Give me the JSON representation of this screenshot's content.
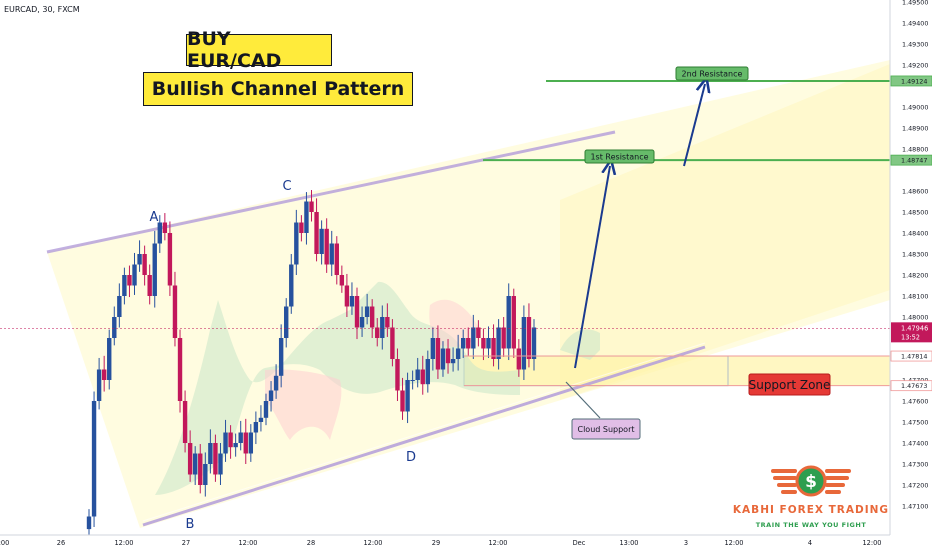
{
  "header": {
    "symbol": "EURCAD, 30, FXCM"
  },
  "titles": {
    "line1": "BUY EUR/CAD",
    "line2": "Bullish Channel Pattern"
  },
  "chart_data": {
    "type": "candlestick",
    "symbol": "EURCAD",
    "timeframe": "30",
    "source": "FXCM",
    "ylim": [
      1.47,
      1.495
    ],
    "y_ticks": [
      1.471,
      1.472,
      1.473,
      1.474,
      1.475,
      1.476,
      1.477,
      1.478,
      1.479,
      1.48,
      1.481,
      1.482,
      1.483,
      1.484,
      1.485,
      1.486,
      1.487,
      1.488,
      1.489,
      1.49,
      1.491,
      1.492,
      1.493,
      1.494,
      1.495
    ],
    "y_tick_labels": [
      "1.47100",
      "1.47200",
      "1.47300",
      "1.47400",
      "1.47500",
      "1.47600",
      "1.47700",
      "1.47800",
      "1.47900",
      "1.48000",
      "1.48100",
      "1.48200",
      "1.48300",
      "1.48400",
      "1.48500",
      "1.48600",
      "1.48700",
      "1.48800",
      "1.48900",
      "1.49000",
      "1.49100",
      "1.49200",
      "1.49300",
      "1.49400",
      "1.49500"
    ],
    "y_tick_hidden": [
      "1.47800",
      "1.48700",
      "1.49100"
    ],
    "x_ticks": [
      {
        "label": ":00",
        "x": 4
      },
      {
        "label": "26",
        "x": 61
      },
      {
        "label": "12:00",
        "x": 124
      },
      {
        "label": "27",
        "x": 186
      },
      {
        "label": "12:00",
        "x": 248
      },
      {
        "label": "28",
        "x": 311
      },
      {
        "label": "12:00",
        "x": 373
      },
      {
        "label": "29",
        "x": 436
      },
      {
        "label": "12:00",
        "x": 498
      },
      {
        "label": "Dec",
        "x": 579
      },
      {
        "label": "13:00",
        "x": 629
      },
      {
        "label": "3",
        "x": 686
      },
      {
        "label": "12:00",
        "x": 734
      },
      {
        "label": "4",
        "x": 810
      },
      {
        "label": "12:00",
        "x": 872
      }
    ],
    "price_levels": [
      {
        "value": 1.49124,
        "label": "1.49124",
        "color": "#4caf50"
      },
      {
        "value": 1.48747,
        "label": "1.48747",
        "color": "#4caf50"
      },
      {
        "value": 1.47814,
        "label": "1.47814",
        "color": "#ef9a9a"
      },
      {
        "value": 1.47673,
        "label": "1.47673",
        "color": "#ef9a9a"
      }
    ],
    "current_price": {
      "value": 1.47946,
      "label": "1.47946",
      "countdown": "13:52",
      "color": "#c2185b"
    },
    "points": [
      {
        "label": "A",
        "price": 1.4846
      },
      {
        "label": "B",
        "price": 1.4714
      },
      {
        "label": "C",
        "price": 1.486
      },
      {
        "label": "D",
        "price": 1.475
      }
    ],
    "annotations": {
      "first_resistance": "1st Resistance",
      "second_resistance": "2nd Resistance",
      "support_zone": "Support Zone",
      "cloud_support": "Cloud Support"
    },
    "series": [
      {
        "name": "price",
        "close": [
          1.4705,
          1.476,
          1.4775,
          1.477,
          1.479,
          1.48,
          1.481,
          1.482,
          1.4815,
          1.4825,
          1.483,
          1.482,
          1.481,
          1.4835,
          1.4845,
          1.484,
          1.4815,
          1.479,
          1.476,
          1.474,
          1.4725,
          1.4735,
          1.472,
          1.473,
          1.474,
          1.4725,
          1.4735,
          1.4745,
          1.4738,
          1.474,
          1.4745,
          1.4735,
          1.4745,
          1.475,
          1.4752,
          1.476,
          1.4765,
          1.4772,
          1.479,
          1.4805,
          1.4825,
          1.4845,
          1.484,
          1.4855,
          1.485,
          1.483,
          1.4842,
          1.4825,
          1.4835,
          1.482,
          1.4815,
          1.4805,
          1.481,
          1.4795,
          1.48,
          1.4805,
          1.4795,
          1.479,
          1.48,
          1.4795,
          1.478,
          1.4765,
          1.4755,
          1.477,
          1.477,
          1.4775,
          1.4768,
          1.478,
          1.479,
          1.4775,
          1.4785,
          1.4778,
          1.478,
          1.4785,
          1.479,
          1.4785,
          1.4795,
          1.479,
          1.4785,
          1.479,
          1.478,
          1.4795,
          1.4785,
          1.481,
          1.4785,
          1.4775,
          1.48,
          1.478,
          1.4795
        ]
      }
    ]
  },
  "branding": {
    "name": "KABHI FOREX TRADING",
    "tagline": "TRAIN THE WAY YOU FIGHT"
  }
}
